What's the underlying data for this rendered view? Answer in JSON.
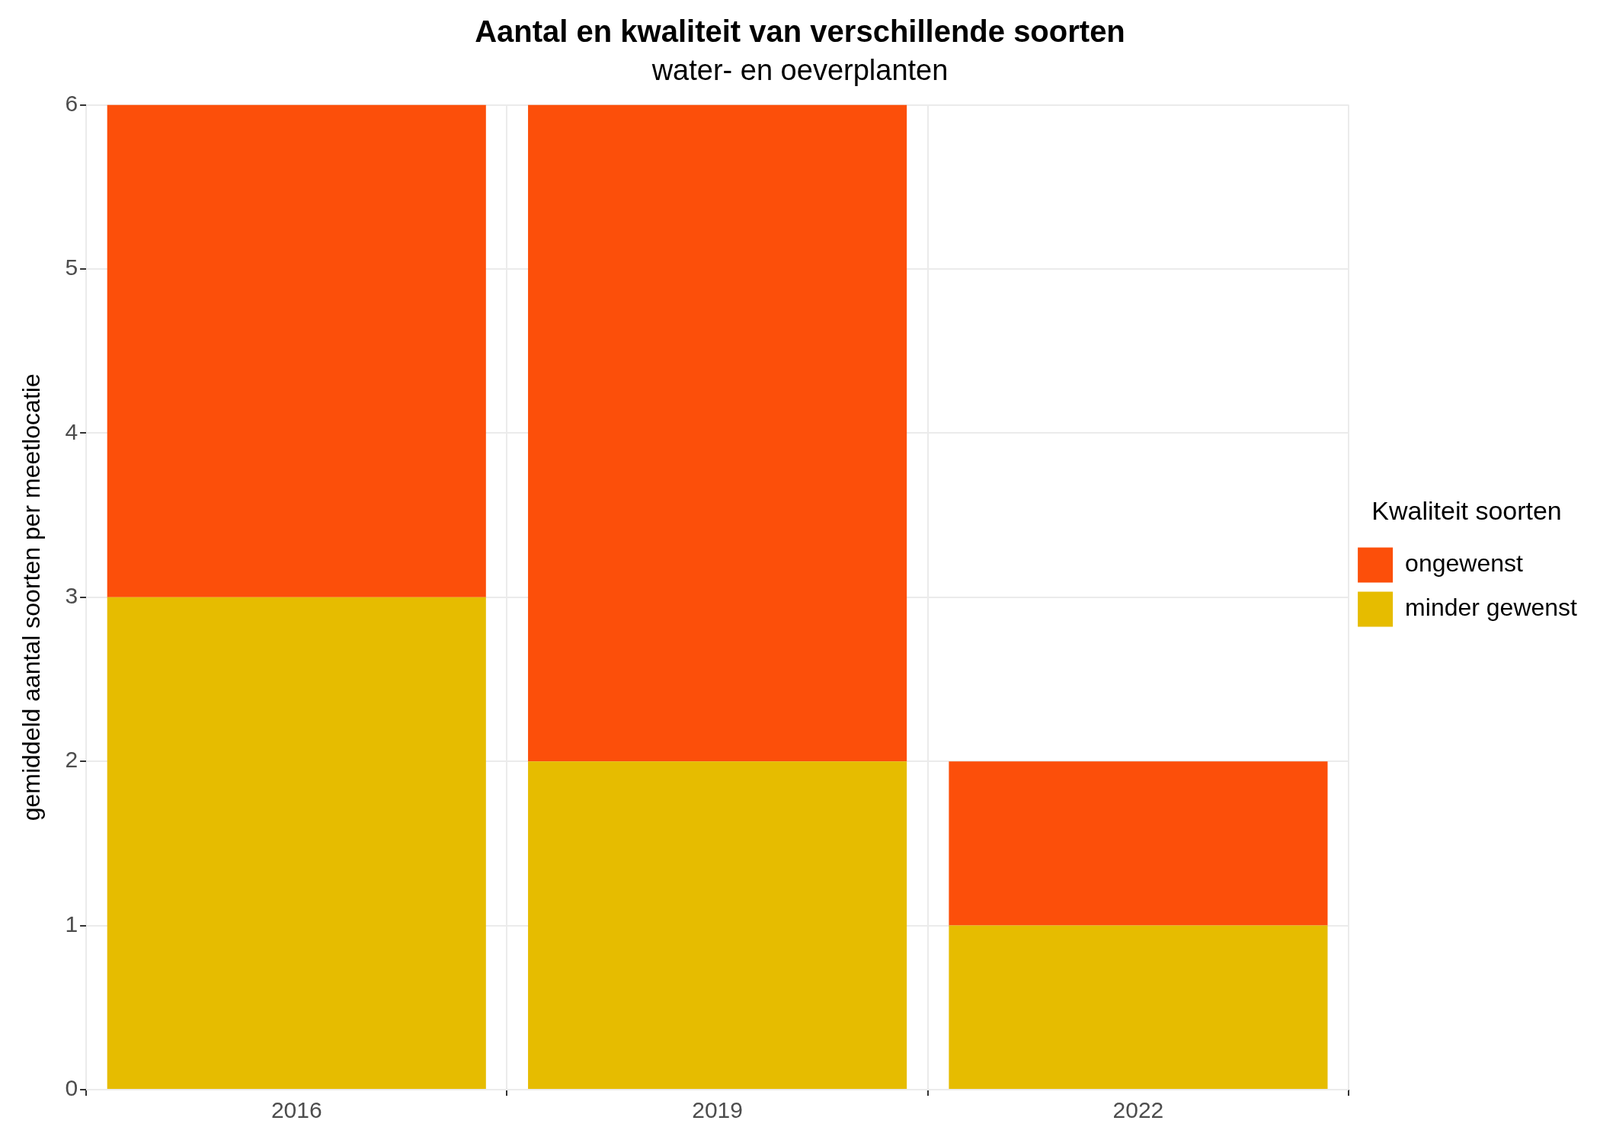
{
  "chart_data": {
    "type": "bar",
    "title": "Aantal en kwaliteit van verschillende soorten",
    "subtitle": "water- en oeverplanten",
    "y_label": "gemiddeld aantal soorten per meetlocatie",
    "legend_title": "Kwaliteit soorten",
    "categories": [
      "2016",
      "2019",
      "2022"
    ],
    "series": [
      {
        "name": "minder gewenst",
        "color": "#E6BC00",
        "values": [
          3,
          2,
          1
        ]
      },
      {
        "name": "ongewenst",
        "color": "#FC4F0A",
        "values": [
          3,
          4,
          1
        ]
      }
    ],
    "stacked": true,
    "ylim": [
      0,
      6
    ],
    "yticks": [
      0,
      1,
      2,
      3,
      4,
      5,
      6
    ],
    "grid": true,
    "legend": "right"
  }
}
